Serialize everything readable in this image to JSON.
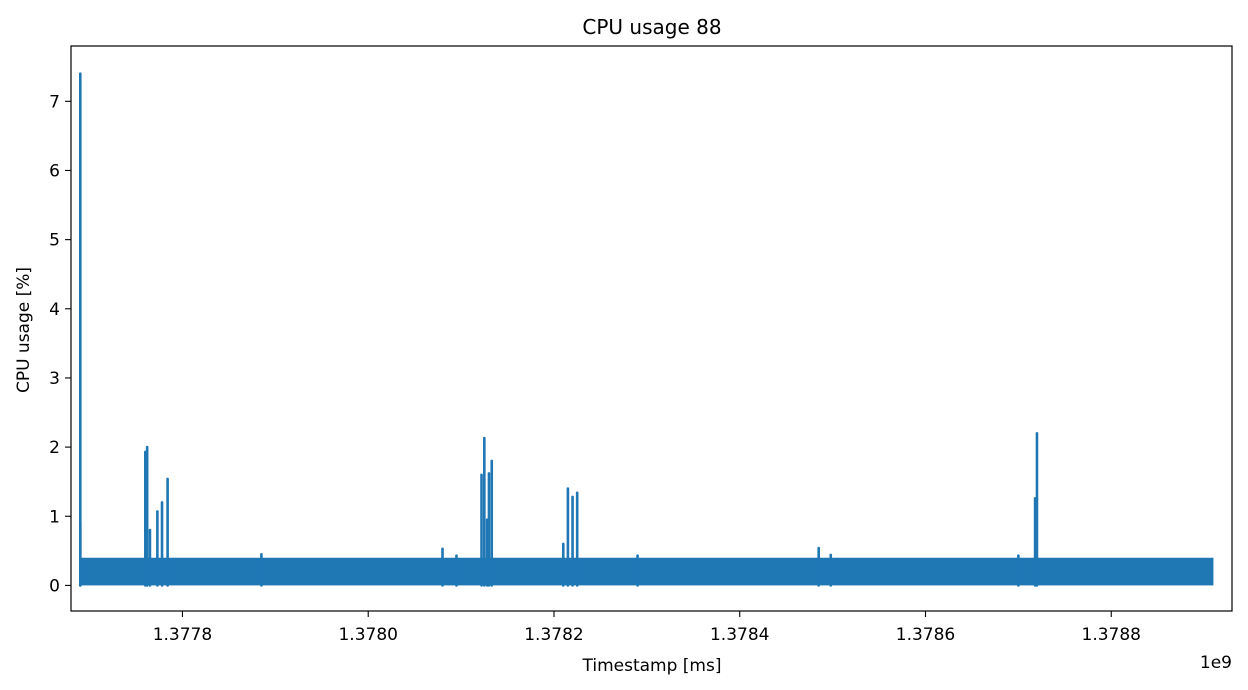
{
  "chart_data": {
    "type": "line",
    "title": "CPU usage 88",
    "xlabel": "Timestamp [ms]",
    "ylabel": "CPU usage [%]",
    "x_offset_label": "1e9",
    "x_tick_labels": [
      "1.3778",
      "1.3780",
      "1.3782",
      "1.3784",
      "1.3786",
      "1.3788"
    ],
    "x_ticks": [
      1.3778,
      1.378,
      1.3782,
      1.3784,
      1.3786,
      1.3788
    ],
    "y_ticks": [
      0,
      1,
      2,
      3,
      4,
      5,
      6,
      7
    ],
    "y_tick_labels": [
      "0",
      "1",
      "2",
      "3",
      "4",
      "5",
      "6",
      "7"
    ],
    "xlim": [
      1.37768,
      1.37893
    ],
    "ylim": [
      -0.37,
      7.8
    ],
    "grid": false,
    "colors": {
      "series": "#1f77b4"
    },
    "series": [
      {
        "baseline_range": [
          0,
          0.4
        ],
        "baseline_x_range": [
          1.37769,
          1.37891
        ],
        "spikes": [
          {
            "x": 1.37769,
            "y": 0.9
          },
          {
            "x": 1.37769,
            "y": 7.4
          },
          {
            "x": 1.37776,
            "y": 1.93
          },
          {
            "x": 1.377762,
            "y": 2.0
          },
          {
            "x": 1.377765,
            "y": 0.8
          },
          {
            "x": 1.377773,
            "y": 1.07
          },
          {
            "x": 1.377778,
            "y": 1.2
          },
          {
            "x": 1.377784,
            "y": 1.54
          },
          {
            "x": 1.377885,
            "y": 0.45
          },
          {
            "x": 1.37808,
            "y": 0.53
          },
          {
            "x": 1.378095,
            "y": 0.43
          },
          {
            "x": 1.378122,
            "y": 1.6
          },
          {
            "x": 1.378125,
            "y": 2.13
          },
          {
            "x": 1.378128,
            "y": 0.95
          },
          {
            "x": 1.37813,
            "y": 1.62
          },
          {
            "x": 1.378133,
            "y": 1.8
          },
          {
            "x": 1.37821,
            "y": 0.6
          },
          {
            "x": 1.378215,
            "y": 1.4
          },
          {
            "x": 1.37822,
            "y": 1.28
          },
          {
            "x": 1.378225,
            "y": 1.34
          },
          {
            "x": 1.37829,
            "y": 0.43
          },
          {
            "x": 1.378485,
            "y": 0.54
          },
          {
            "x": 1.378498,
            "y": 0.44
          },
          {
            "x": 1.3787,
            "y": 0.43
          },
          {
            "x": 1.378718,
            "y": 1.26
          },
          {
            "x": 1.37872,
            "y": 2.2
          }
        ]
      }
    ]
  }
}
